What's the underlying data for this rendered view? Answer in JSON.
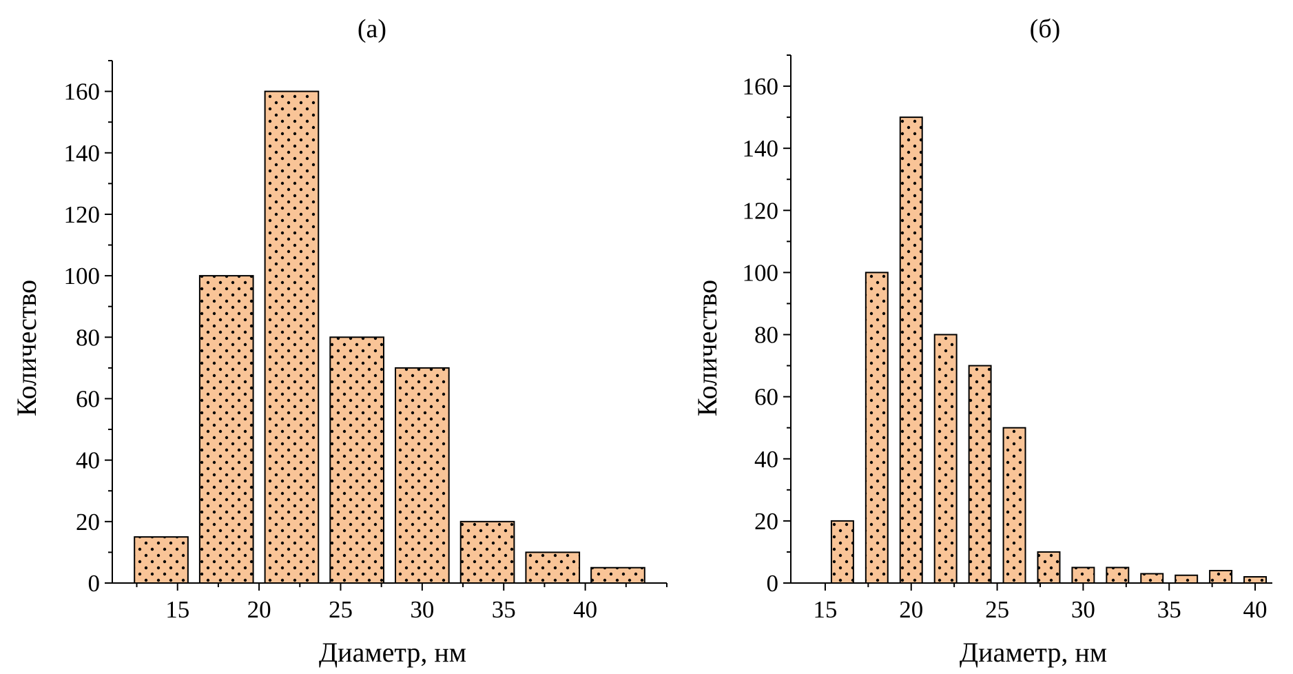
{
  "colors": {
    "bar_fill": "#f9c497",
    "bar_stroke": "#000000",
    "dot": "#000000",
    "axis": "#000000"
  },
  "chart_data": [
    {
      "type": "bar",
      "title": "(а)",
      "xlabel": "Диаметр, нм",
      "ylabel": "Количество",
      "xlim": [
        11,
        45
      ],
      "ylim": [
        0,
        170
      ],
      "x_ticks": [
        15,
        20,
        25,
        30,
        35,
        40
      ],
      "y_ticks": [
        0,
        20,
        40,
        60,
        80,
        100,
        120,
        140,
        160
      ],
      "grid": false,
      "bin_width": 4,
      "x": [
        14,
        18,
        22,
        26,
        30,
        34,
        38,
        42
      ],
      "values": [
        15,
        100,
        160,
        80,
        70,
        20,
        10,
        5
      ]
    },
    {
      "type": "bar",
      "title": "(б)",
      "xlabel": "Диаметр, нм",
      "ylabel": "Количество",
      "xlim": [
        13,
        41
      ],
      "ylim": [
        0,
        170
      ],
      "x_ticks": [
        15,
        20,
        25,
        30,
        35,
        40
      ],
      "y_ticks": [
        0,
        20,
        40,
        60,
        80,
        100,
        120,
        140,
        160
      ],
      "grid": false,
      "bin_width": 2,
      "x": [
        16,
        18,
        20,
        22,
        24,
        26,
        28,
        30,
        32,
        34,
        36,
        38,
        40
      ],
      "values": [
        20,
        100,
        150,
        80,
        70,
        50,
        10,
        5,
        5,
        3,
        2.5,
        4,
        2
      ]
    }
  ]
}
